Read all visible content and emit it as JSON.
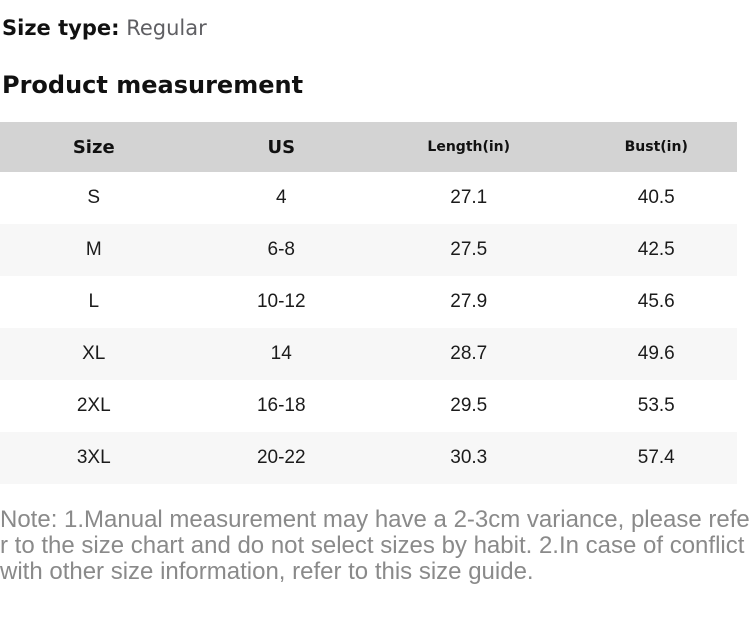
{
  "page": {
    "size_type_label": "Size type:",
    "size_type_value": "Regular",
    "section_title": "Product measurement",
    "note": "Note: 1.Manual measurement may have a 2-3cm variance, please refer to the size chart and do not select sizes by habit. 2.In case of conflict with other size information, refer to this size guide."
  },
  "table": {
    "columns": [
      "Size",
      "US",
      "Length(in)",
      "Bust(in)"
    ],
    "rows": [
      [
        "S",
        "4",
        "27.1",
        "40.5"
      ],
      [
        "M",
        "6-8",
        "27.5",
        "42.5"
      ],
      [
        "L",
        "10-12",
        "27.9",
        "45.6"
      ],
      [
        "XL",
        "14",
        "28.7",
        "49.6"
      ],
      [
        "2XL",
        "16-18",
        "29.5",
        "53.5"
      ],
      [
        "3XL",
        "20-22",
        "30.3",
        "57.4"
      ]
    ]
  },
  "colors": {
    "header_bg": "#d3d3d3",
    "stripe_bg": "#f7f7f7",
    "heading_text": "#111111",
    "cell_text": "#1b1b1b",
    "size_type_value_text": "#5f5f63",
    "note_text": "#8a8a8a"
  }
}
